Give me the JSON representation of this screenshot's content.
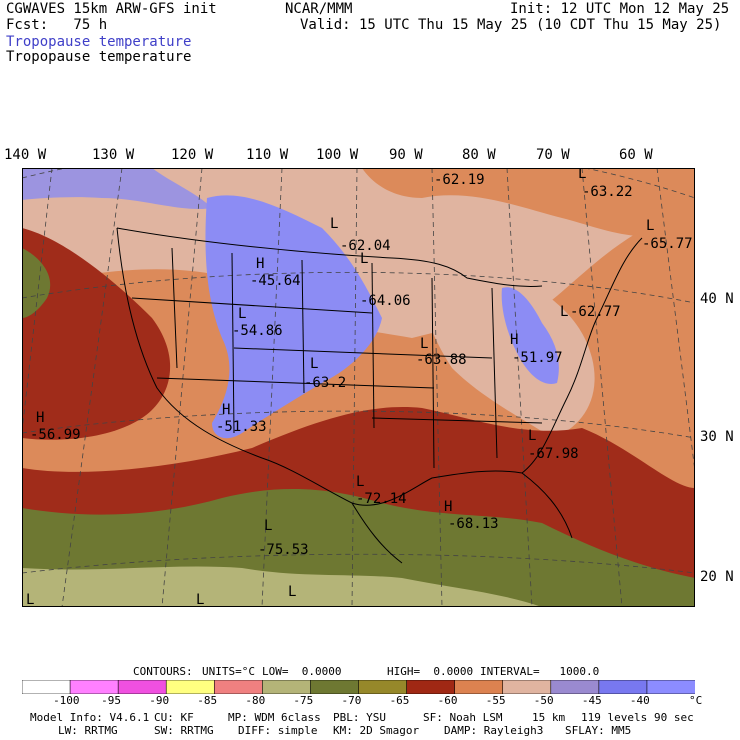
{
  "header": {
    "model_line": "CGWAVES 15km ARW-GFS init",
    "fcst_line": "Fcst:   75 h",
    "org": "NCAR/MMM",
    "init": "Init: 12 UTC Mon 12 May 25",
    "valid": "Valid: 15 UTC Thu 15 May 25 (10 CDT Thu 15 May 25)",
    "field_title_shaded": "Tropopause temperature",
    "field_title_contour": "Tropopause temperature"
  },
  "lon_labels": [
    "140 W",
    "130 W",
    "120 W",
    "110 W",
    "100 W",
    "90 W",
    "80 W",
    "70 W",
    "60 W"
  ],
  "lat_labels": [
    "40 N",
    "30 N",
    "20 N"
  ],
  "extrema": [
    {
      "kind": "H",
      "value": "-45.64"
    },
    {
      "kind": "L",
      "value": "-54.86"
    },
    {
      "kind": "L",
      "value": "-63.2"
    },
    {
      "kind": "H",
      "value": "-51.33"
    },
    {
      "kind": "H",
      "value": "-56.99"
    },
    {
      "kind": "L",
      "value": "-62.04"
    },
    {
      "kind": "L",
      "value": "-64.06"
    },
    {
      "kind": "L",
      "value": "-63.88"
    },
    {
      "kind": "",
      "value": "-62.19"
    },
    {
      "kind": "L",
      "value": "-63.22"
    },
    {
      "kind": "L",
      "value": "-65.77"
    },
    {
      "kind": "L",
      "value": "-62.77"
    },
    {
      "kind": "H",
      "value": "-51.97"
    },
    {
      "kind": "L",
      "value": "-67.98"
    },
    {
      "kind": "L",
      "value": "-72.14"
    },
    {
      "kind": "H",
      "value": "-68.13"
    },
    {
      "kind": "L",
      "value": "-75.53"
    },
    {
      "kind": "L",
      "value": ""
    },
    {
      "kind": "L",
      "value": ""
    },
    {
      "kind": "L",
      "value": ""
    }
  ],
  "contour_info": {
    "contours": "CONTOURS:",
    "units": "UNITS=°C",
    "low": "LOW=  0.0000",
    "high": "HIGH=  0.0000",
    "interval": "INTERVAL=   1000.0"
  },
  "legend": {
    "colors": [
      "#ffffff",
      "#ff80ff",
      "#f050e0",
      "#ffff80",
      "#f08080",
      "#b4b478",
      "#6e7832",
      "#96882a",
      "#a02814",
      "#dc8250",
      "#e0b4a0",
      "#9a8ad0",
      "#7878f0",
      "#8c8cff"
    ],
    "labels": [
      "-100",
      "-95",
      "-90",
      "-85",
      "-80",
      "-75",
      "-70",
      "-65",
      "-60",
      "-55",
      "-50",
      "-45",
      "-40"
    ],
    "unit": "°C"
  },
  "footer": {
    "line1": [
      "Model Info: V4.6.1",
      "CU: KF",
      "MP: WDM 6class",
      "PBL: YSU",
      "SF: Noah LSM",
      "15 km",
      "119 levels",
      "90 sec"
    ],
    "line2": [
      "LW: RRTMG",
      "SW: RRTMG",
      "DIFF: simple",
      "KM: 2D Smagor",
      "DAMP: Rayleigh3",
      "SFLAY: MM5"
    ]
  },
  "fill_colors": {
    "purple_light": "#9c94e0",
    "blue": "#8c8cf4",
    "pink": "#e0b4a0",
    "orange": "#dc8a5a",
    "red": "#a02c1a",
    "olive": "#6e7832",
    "khaki": "#b4b478"
  }
}
